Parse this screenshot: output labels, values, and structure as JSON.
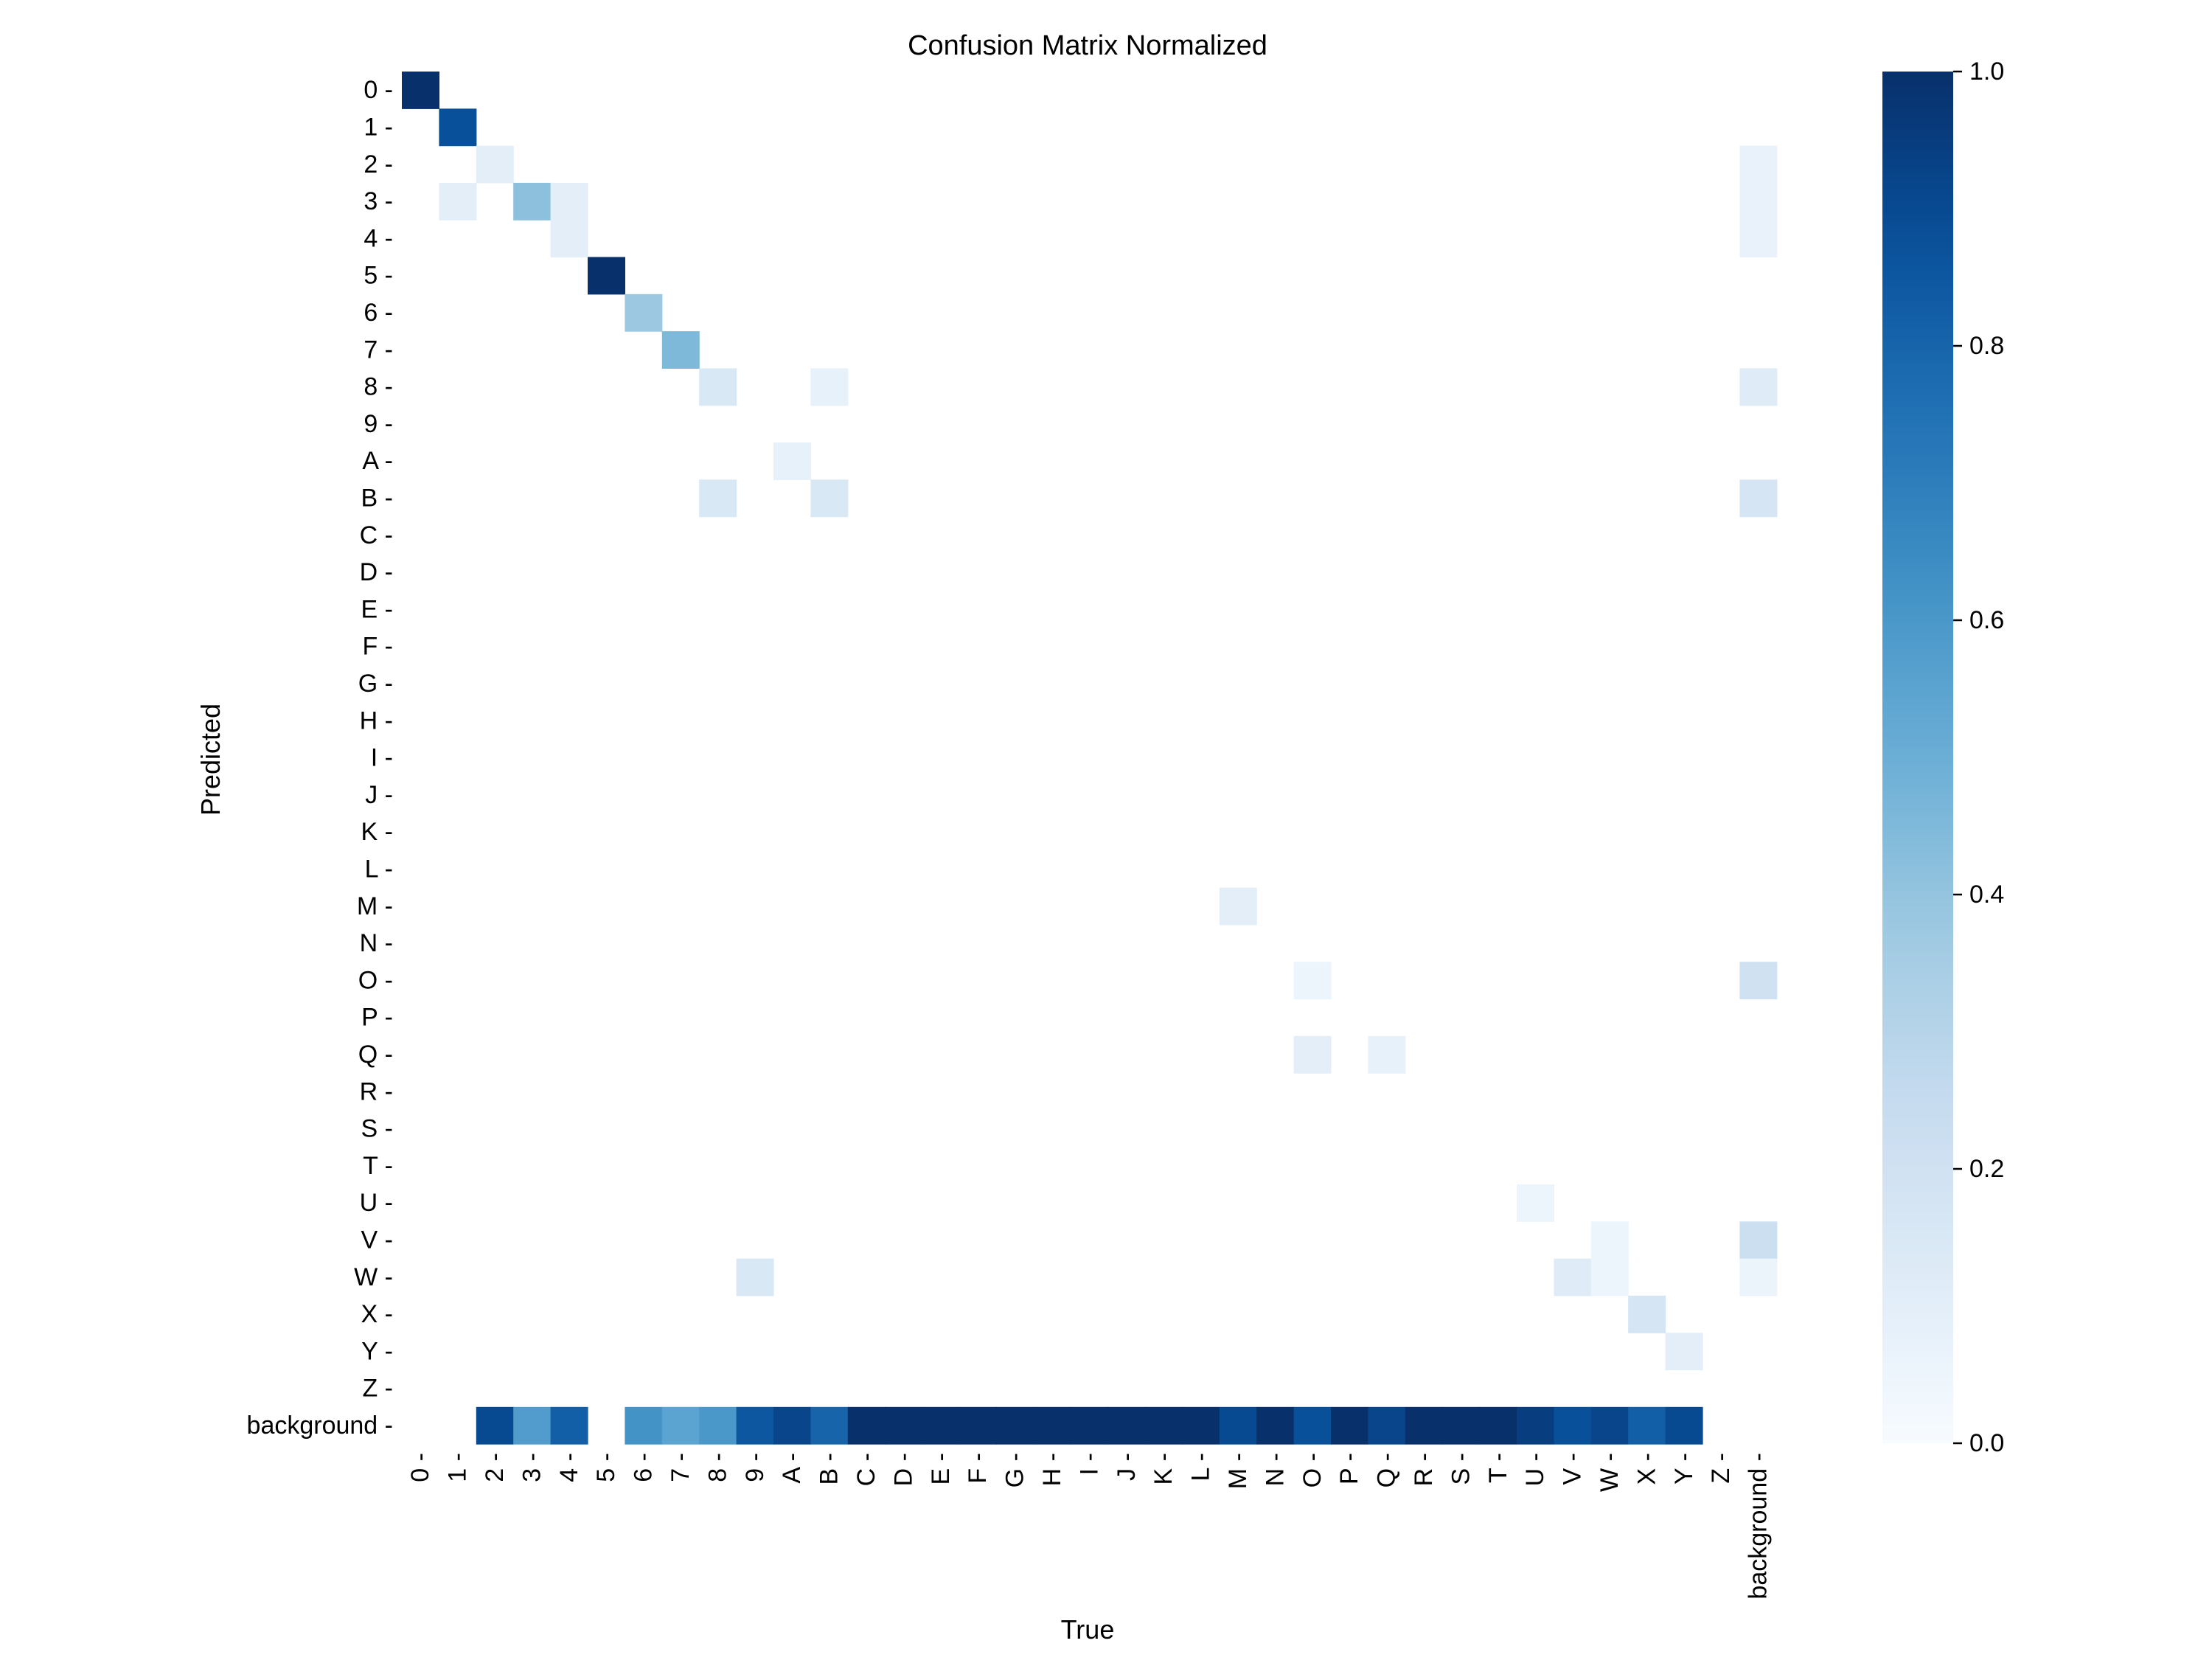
{
  "chart_data": {
    "type": "heatmap",
    "title": "Confusion Matrix Normalized",
    "xlabel": "True",
    "ylabel": "Predicted",
    "x_categories": [
      "0",
      "1",
      "2",
      "3",
      "4",
      "5",
      "6",
      "7",
      "8",
      "9",
      "A",
      "B",
      "C",
      "D",
      "E",
      "F",
      "G",
      "H",
      "I",
      "J",
      "K",
      "L",
      "M",
      "N",
      "O",
      "P",
      "Q",
      "R",
      "S",
      "T",
      "U",
      "V",
      "W",
      "X",
      "Y",
      "Z",
      "background"
    ],
    "y_categories": [
      "0",
      "1",
      "2",
      "3",
      "4",
      "5",
      "6",
      "7",
      "8",
      "9",
      "A",
      "B",
      "C",
      "D",
      "E",
      "F",
      "G",
      "H",
      "I",
      "J",
      "K",
      "L",
      "M",
      "N",
      "O",
      "P",
      "Q",
      "R",
      "S",
      "T",
      "U",
      "V",
      "W",
      "X",
      "Y",
      "Z",
      "background"
    ],
    "colormap": "Blues",
    "value_range": [
      0,
      1
    ],
    "colorbar_ticks": [
      "0.0",
      "0.2",
      "0.4",
      "0.6",
      "0.8",
      "1.0"
    ],
    "colorbar_tick_values": [
      0,
      0.2,
      0.4,
      0.6,
      0.8,
      1.0
    ],
    "grid": false,
    "cells": [
      {
        "true": "0",
        "predicted": "0",
        "value": 1.0
      },
      {
        "true": "1",
        "predicted": "1",
        "value": 0.88
      },
      {
        "true": "1",
        "predicted": "3",
        "value": 0.1
      },
      {
        "true": "2",
        "predicted": "2",
        "value": 0.1
      },
      {
        "true": "3",
        "predicted": "3",
        "value": 0.42
      },
      {
        "true": "4",
        "predicted": "3",
        "value": 0.1
      },
      {
        "true": "4",
        "predicted": "4",
        "value": 0.1
      },
      {
        "true": "5",
        "predicted": "5",
        "value": 1.0
      },
      {
        "true": "6",
        "predicted": "6",
        "value": 0.38
      },
      {
        "true": "7",
        "predicted": "7",
        "value": 0.45
      },
      {
        "true": "8",
        "predicted": "8",
        "value": 0.15
      },
      {
        "true": "8",
        "predicted": "B",
        "value": 0.15
      },
      {
        "true": "9",
        "predicted": "W",
        "value": 0.15
      },
      {
        "true": "A",
        "predicted": "A",
        "value": 0.08
      },
      {
        "true": "B",
        "predicted": "8",
        "value": 0.08
      },
      {
        "true": "B",
        "predicted": "B",
        "value": 0.15
      },
      {
        "true": "M",
        "predicted": "M",
        "value": 0.1
      },
      {
        "true": "O",
        "predicted": "O",
        "value": 0.05
      },
      {
        "true": "O",
        "predicted": "Q",
        "value": 0.1
      },
      {
        "true": "Q",
        "predicted": "Q",
        "value": 0.08
      },
      {
        "true": "U",
        "predicted": "U",
        "value": 0.05
      },
      {
        "true": "V",
        "predicted": "W",
        "value": 0.12
      },
      {
        "true": "W",
        "predicted": "V",
        "value": 0.05
      },
      {
        "true": "W",
        "predicted": "W",
        "value": 0.05
      },
      {
        "true": "X",
        "predicted": "X",
        "value": 0.17
      },
      {
        "true": "Y",
        "predicted": "Y",
        "value": 0.1
      },
      {
        "true": "2",
        "predicted": "background",
        "value": 0.9
      },
      {
        "true": "3",
        "predicted": "background",
        "value": 0.58
      },
      {
        "true": "4",
        "predicted": "background",
        "value": 0.82
      },
      {
        "true": "6",
        "predicted": "background",
        "value": 0.62
      },
      {
        "true": "7",
        "predicted": "background",
        "value": 0.55
      },
      {
        "true": "8",
        "predicted": "background",
        "value": 0.6
      },
      {
        "true": "9",
        "predicted": "background",
        "value": 0.85
      },
      {
        "true": "A",
        "predicted": "background",
        "value": 0.92
      },
      {
        "true": "B",
        "predicted": "background",
        "value": 0.8
      },
      {
        "true": "C",
        "predicted": "background",
        "value": 1.0
      },
      {
        "true": "D",
        "predicted": "background",
        "value": 1.0
      },
      {
        "true": "E",
        "predicted": "background",
        "value": 1.0
      },
      {
        "true": "F",
        "predicted": "background",
        "value": 1.0
      },
      {
        "true": "G",
        "predicted": "background",
        "value": 1.0
      },
      {
        "true": "H",
        "predicted": "background",
        "value": 1.0
      },
      {
        "true": "I",
        "predicted": "background",
        "value": 1.0
      },
      {
        "true": "J",
        "predicted": "background",
        "value": 1.0
      },
      {
        "true": "K",
        "predicted": "background",
        "value": 1.0
      },
      {
        "true": "L",
        "predicted": "background",
        "value": 1.0
      },
      {
        "true": "M",
        "predicted": "background",
        "value": 0.9
      },
      {
        "true": "N",
        "predicted": "background",
        "value": 1.0
      },
      {
        "true": "O",
        "predicted": "background",
        "value": 0.88
      },
      {
        "true": "P",
        "predicted": "background",
        "value": 1.0
      },
      {
        "true": "Q",
        "predicted": "background",
        "value": 0.92
      },
      {
        "true": "R",
        "predicted": "background",
        "value": 1.0
      },
      {
        "true": "S",
        "predicted": "background",
        "value": 1.0
      },
      {
        "true": "T",
        "predicted": "background",
        "value": 1.0
      },
      {
        "true": "U",
        "predicted": "background",
        "value": 0.95
      },
      {
        "true": "V",
        "predicted": "background",
        "value": 0.88
      },
      {
        "true": "W",
        "predicted": "background",
        "value": 0.92
      },
      {
        "true": "X",
        "predicted": "background",
        "value": 0.82
      },
      {
        "true": "Y",
        "predicted": "background",
        "value": 0.9
      },
      {
        "true": "background",
        "predicted": "2",
        "value": 0.07
      },
      {
        "true": "background",
        "predicted": "3",
        "value": 0.07
      },
      {
        "true": "background",
        "predicted": "4",
        "value": 0.07
      },
      {
        "true": "background",
        "predicted": "8",
        "value": 0.12
      },
      {
        "true": "background",
        "predicted": "B",
        "value": 0.17
      },
      {
        "true": "background",
        "predicted": "O",
        "value": 0.2
      },
      {
        "true": "background",
        "predicted": "V",
        "value": 0.22
      },
      {
        "true": "background",
        "predicted": "W",
        "value": 0.06
      }
    ]
  }
}
